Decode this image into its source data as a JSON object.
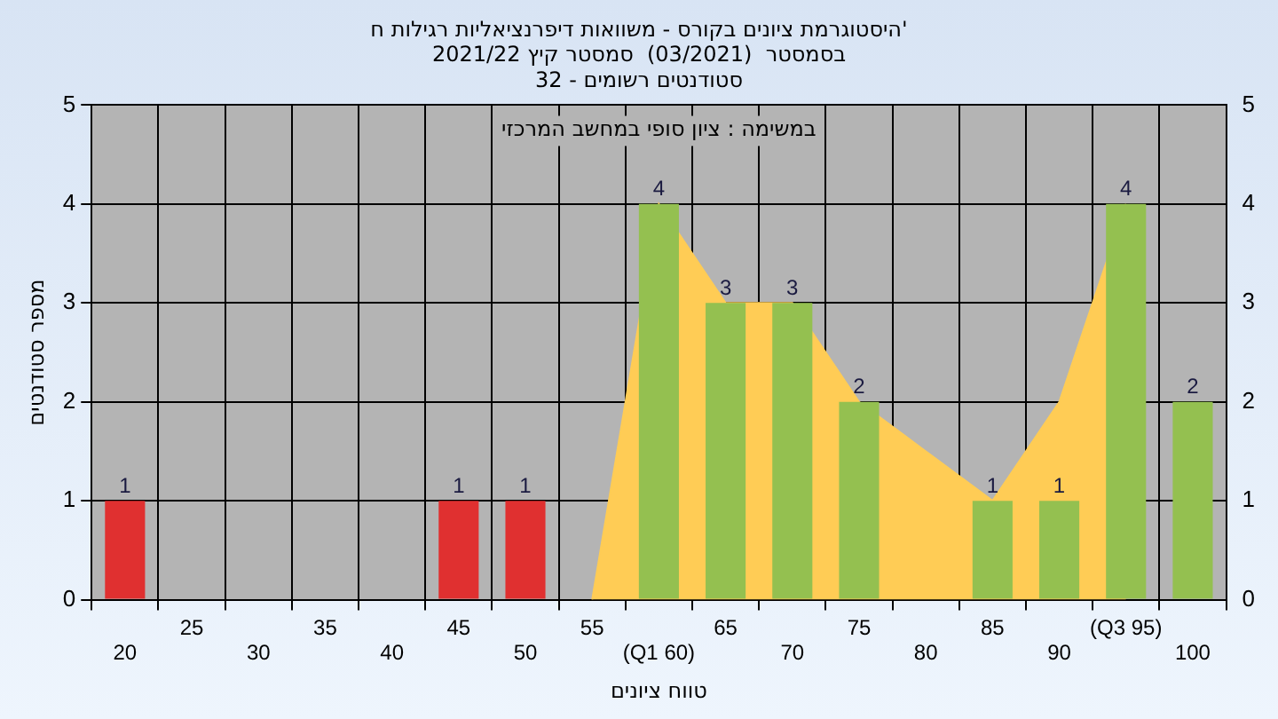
{
  "chart_data": {
    "type": "bar",
    "title": "היסטוגרמת ציונים בקורס - משוואות דיפרנציאליות רגילות ח'",
    "subtitle": "בסמסטר  (03/2021)  סמסטר קיץ 2021/22\nסטודנטים רשומים - 32",
    "xlabel": "טווח ציונים",
    "ylabel": "מספר סטודנטים",
    "annotations": [
      "במשימה : ציון סופי במחשב המרכזי"
    ],
    "categories": [
      "20",
      "25",
      "30",
      "35",
      "40",
      "45",
      "50",
      "55",
      "(Q1 60)",
      "65",
      "70",
      "75",
      "80",
      "85",
      "90",
      "(Q3 95)",
      "100"
    ],
    "series": [
      {
        "colors": [
          "#e03030",
          "#e03030",
          "#e03030",
          "#e03030",
          "#e03030",
          "#e03030",
          "#e03030",
          "#e03030",
          "#94c050",
          "#94c050",
          "#94c050",
          "#94c050",
          "#94c050",
          "#94c050",
          "#94c050",
          "#94c050",
          "#94c050"
        ],
        "values": [
          1,
          0,
          0,
          0,
          0,
          1,
          1,
          0,
          4,
          3,
          3,
          2,
          0,
          1,
          1,
          4,
          2
        ],
        "value_labels": [
          "1",
          null,
          null,
          null,
          null,
          "1",
          "1",
          null,
          "4",
          "3",
          "3",
          "2",
          null,
          "1",
          "1",
          "4",
          "2"
        ]
      },
      {
        "type": "area",
        "color": "#ffcc55",
        "values": [
          null,
          null,
          null,
          null,
          null,
          null,
          null,
          0,
          4,
          3,
          3,
          2,
          1.5,
          1,
          2,
          4,
          null
        ]
      }
    ],
    "ylim": [
      0,
      5
    ],
    "yticks": [
      0,
      1,
      2,
      3,
      4,
      5
    ],
    "y2lim": [
      0,
      5
    ],
    "y2ticks": [
      0,
      1,
      2,
      3,
      4,
      5
    ],
    "grid": true,
    "legend": false
  }
}
